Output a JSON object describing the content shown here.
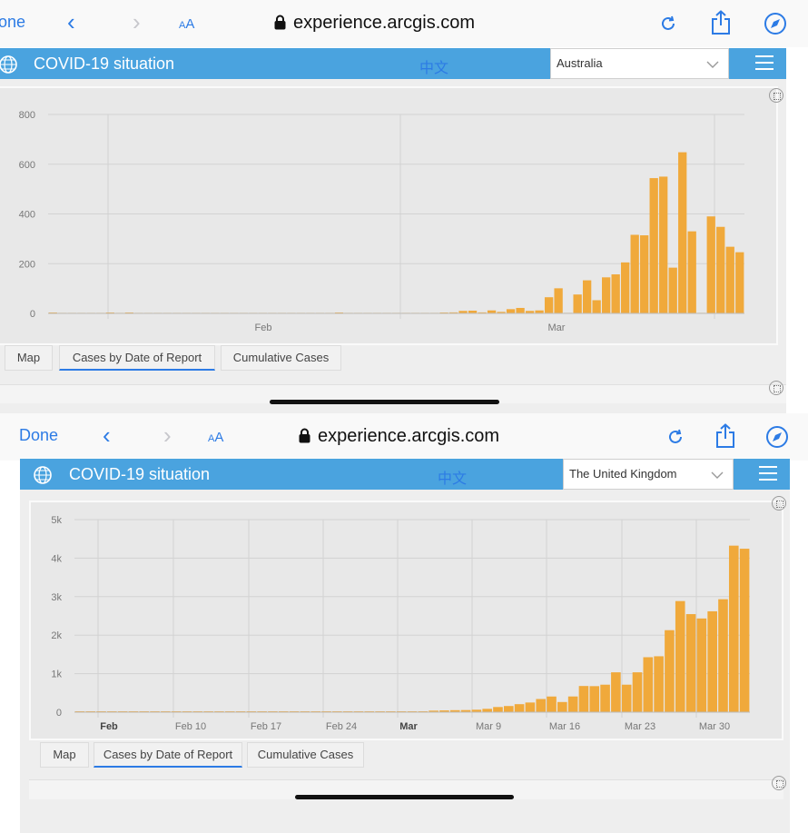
{
  "browser": {
    "done_label": "Done",
    "done_label_cropped": "one",
    "text_size_label": "AA",
    "url": "experience.arcgis.com"
  },
  "app": {
    "title": "COVID-19 situation",
    "language_link": "中文",
    "accent_color": "#4aa3df",
    "bar_color": "#f0a93b"
  },
  "tabs": {
    "map": "Map",
    "by_date": "Cases by Date of Report",
    "cumulative": "Cumulative Cases"
  },
  "panels": [
    {
      "country": "Australia",
      "chart_data": {
        "type": "bar",
        "title": "",
        "xlabel": "",
        "ylabel": "",
        "ylim": [
          0,
          800
        ],
        "yticks": [
          "0",
          "200",
          "400",
          "600",
          "800"
        ],
        "x_tick_labels": [
          "Feb",
          "Mar"
        ],
        "grid": true,
        "values": [
          3,
          0,
          0,
          0,
          0,
          0,
          1,
          0,
          1,
          0,
          0,
          0,
          0,
          0,
          0,
          0,
          0,
          0,
          0,
          0,
          0,
          0,
          0,
          0,
          0,
          0,
          0,
          0,
          0,
          0,
          2,
          0,
          0,
          0,
          0,
          0,
          0,
          0,
          0,
          0,
          0,
          2,
          4,
          10,
          11,
          4,
          12,
          6,
          17,
          22,
          10,
          12,
          65,
          101,
          0,
          76,
          133,
          53,
          145,
          157,
          205,
          316,
          314,
          544,
          550,
          184,
          648,
          330,
          0,
          390,
          348,
          268,
          246
        ]
      }
    },
    {
      "country": "The United Kingdom",
      "chart_data": {
        "type": "bar",
        "title": "",
        "xlabel": "",
        "ylabel": "",
        "ylim": [
          0,
          5000
        ],
        "yticks": [
          "0",
          "1k",
          "2k",
          "3k",
          "4k",
          "5k"
        ],
        "x_tick_labels": [
          "Feb",
          "Feb 10",
          "Feb 17",
          "Feb 24",
          "Mar",
          "Mar 9",
          "Mar 16",
          "Mar 23",
          "Mar 30"
        ],
        "grid": true,
        "values": [
          2,
          2,
          2,
          2,
          2,
          2,
          2,
          2,
          2,
          2,
          2,
          2,
          2,
          2,
          2,
          2,
          2,
          2,
          2,
          2,
          2,
          2,
          2,
          2,
          2,
          2,
          2,
          2,
          2,
          4,
          10,
          14,
          20,
          40,
          46,
          52,
          55,
          64,
          87,
          134,
          160,
          208,
          251,
          342,
          407,
          264,
          408,
          680,
          676,
          714,
          1035,
          714,
          1035,
          1427,
          1452,
          2129,
          2885,
          2546,
          2433,
          2619,
          2933,
          4324,
          4244
        ]
      }
    }
  ]
}
